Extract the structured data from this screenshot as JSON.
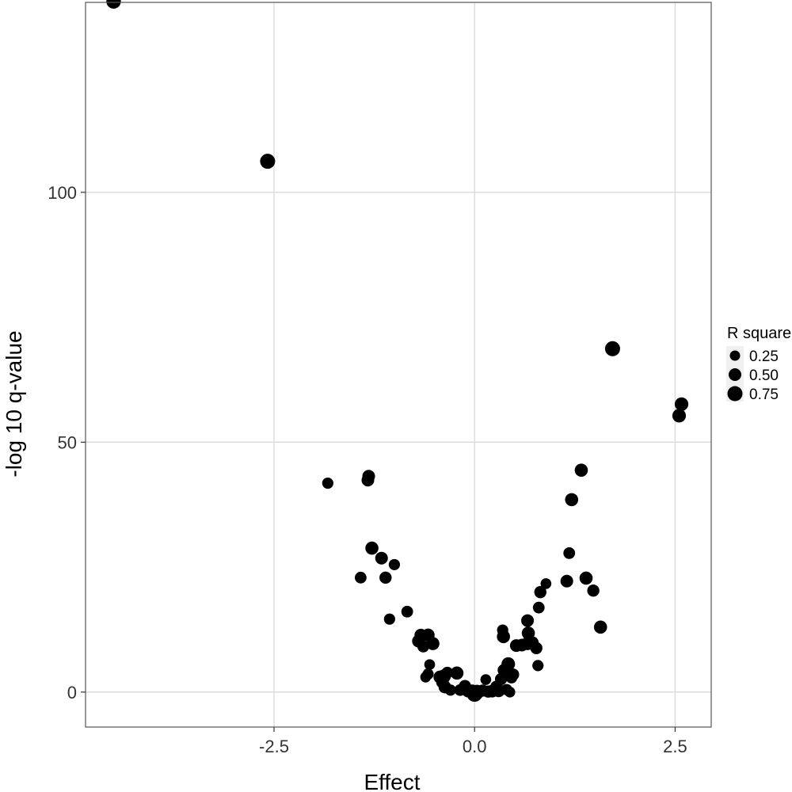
{
  "chart_data": {
    "type": "scatter",
    "title": "",
    "xlabel": "Effect",
    "ylabel": "-log 10 q-value",
    "xlim": [
      -4.85,
      2.95
    ],
    "ylim": [
      -7,
      138
    ],
    "x_ticks": [
      -2.5,
      0.0,
      2.5
    ],
    "x_tick_labels": [
      "-2.5",
      "0.0",
      "2.5"
    ],
    "y_ticks": [
      0,
      50,
      100
    ],
    "y_tick_labels": [
      "0",
      "50",
      "100"
    ],
    "grid": true,
    "legend": {
      "title": "R square",
      "placement": "right",
      "entries": [
        {
          "label": "0.25",
          "value": 0.25
        },
        {
          "label": "0.50",
          "value": 0.5
        },
        {
          "label": "0.75",
          "value": 0.75
        }
      ]
    },
    "colors": {
      "points": "#000000",
      "grid": "#d9d9d9",
      "frame": "#555555"
    },
    "points": [
      {
        "x": -4.5,
        "y": 138.2,
        "r2": 0.7
      },
      {
        "x": -2.58,
        "y": 106.2,
        "r2": 0.75
      },
      {
        "x": 1.72,
        "y": 68.7,
        "r2": 0.75
      },
      {
        "x": 2.58,
        "y": 57.6,
        "r2": 0.6
      },
      {
        "x": 2.55,
        "y": 55.3,
        "r2": 0.6
      },
      {
        "x": -1.83,
        "y": 41.8,
        "r2": 0.35
      },
      {
        "x": -1.32,
        "y": 43.2,
        "r2": 0.5
      },
      {
        "x": -1.33,
        "y": 42.4,
        "r2": 0.5
      },
      {
        "x": 1.33,
        "y": 44.4,
        "r2": 0.55
      },
      {
        "x": 1.21,
        "y": 38.5,
        "r2": 0.55
      },
      {
        "x": -1.28,
        "y": 28.8,
        "r2": 0.55
      },
      {
        "x": -1.16,
        "y": 26.8,
        "r2": 0.5
      },
      {
        "x": -1.0,
        "y": 25.5,
        "r2": 0.35
      },
      {
        "x": -1.42,
        "y": 22.9,
        "r2": 0.4
      },
      {
        "x": -1.11,
        "y": 22.9,
        "r2": 0.45
      },
      {
        "x": 1.18,
        "y": 27.8,
        "r2": 0.4
      },
      {
        "x": 1.15,
        "y": 22.2,
        "r2": 0.5
      },
      {
        "x": 1.39,
        "y": 22.8,
        "r2": 0.55
      },
      {
        "x": 1.48,
        "y": 20.3,
        "r2": 0.45
      },
      {
        "x": 0.82,
        "y": 20.0,
        "r2": 0.45
      },
      {
        "x": 0.89,
        "y": 21.7,
        "r2": 0.3
      },
      {
        "x": 0.8,
        "y": 16.9,
        "r2": 0.4
      },
      {
        "x": 1.57,
        "y": 13.0,
        "r2": 0.55
      },
      {
        "x": -0.84,
        "y": 16.1,
        "r2": 0.4
      },
      {
        "x": -1.06,
        "y": 14.6,
        "r2": 0.35
      },
      {
        "x": -0.67,
        "y": 11.4,
        "r2": 0.5
      },
      {
        "x": -0.58,
        "y": 11.4,
        "r2": 0.55
      },
      {
        "x": -0.7,
        "y": 10.2,
        "r2": 0.5
      },
      {
        "x": -0.64,
        "y": 9.1,
        "r2": 0.4
      },
      {
        "x": -0.52,
        "y": 9.7,
        "r2": 0.55
      },
      {
        "x": -0.56,
        "y": 5.5,
        "r2": 0.3
      },
      {
        "x": -0.58,
        "y": 3.6,
        "r2": 0.35
      },
      {
        "x": -0.61,
        "y": 3.0,
        "r2": 0.3
      },
      {
        "x": -0.43,
        "y": 3.0,
        "r2": 0.55
      },
      {
        "x": -0.38,
        "y": 3.2,
        "r2": 0.6
      },
      {
        "x": -0.4,
        "y": 2.0,
        "r2": 0.5
      },
      {
        "x": -0.37,
        "y": 1.0,
        "r2": 0.5
      },
      {
        "x": -0.34,
        "y": 3.9,
        "r2": 0.4
      },
      {
        "x": -0.3,
        "y": 0.4,
        "r2": 0.35
      },
      {
        "x": -0.22,
        "y": 3.8,
        "r2": 0.55
      },
      {
        "x": -0.18,
        "y": 0.4,
        "r2": 0.4
      },
      {
        "x": -0.12,
        "y": 1.2,
        "r2": 0.45
      },
      {
        "x": -0.08,
        "y": 0.2,
        "r2": 0.5
      },
      {
        "x": -0.03,
        "y": 0.1,
        "r2": 0.65
      },
      {
        "x": 0.0,
        "y": -0.4,
        "r2": 0.8
      },
      {
        "x": 0.03,
        "y": 0.0,
        "r2": 0.7
      },
      {
        "x": 0.1,
        "y": 0.3,
        "r2": 0.45
      },
      {
        "x": 0.14,
        "y": 2.5,
        "r2": 0.3
      },
      {
        "x": 0.17,
        "y": 0.1,
        "r2": 0.45
      },
      {
        "x": 0.22,
        "y": 0.2,
        "r2": 0.5
      },
      {
        "x": 0.27,
        "y": 1.1,
        "r2": 0.4
      },
      {
        "x": 0.3,
        "y": 0.3,
        "r2": 0.55
      },
      {
        "x": 0.33,
        "y": 2.6,
        "r2": 0.45
      },
      {
        "x": 0.36,
        "y": 4.4,
        "r2": 0.4
      },
      {
        "x": 0.4,
        "y": 0.5,
        "r2": 0.35
      },
      {
        "x": 0.44,
        "y": 0.0,
        "r2": 0.3
      },
      {
        "x": 0.35,
        "y": 12.4,
        "r2": 0.35
      },
      {
        "x": 0.36,
        "y": 11.1,
        "r2": 0.55
      },
      {
        "x": 0.42,
        "y": 5.6,
        "r2": 0.6
      },
      {
        "x": 0.48,
        "y": 3.5,
        "r2": 0.45
      },
      {
        "x": 0.46,
        "y": 2.9,
        "r2": 0.4
      },
      {
        "x": 0.52,
        "y": 9.3,
        "r2": 0.5
      },
      {
        "x": 0.59,
        "y": 9.4,
        "r2": 0.5
      },
      {
        "x": 0.66,
        "y": 9.7,
        "r2": 0.55
      },
      {
        "x": 0.72,
        "y": 9.9,
        "r2": 0.5
      },
      {
        "x": 0.77,
        "y": 8.8,
        "r2": 0.45
      },
      {
        "x": 0.67,
        "y": 11.8,
        "r2": 0.55
      },
      {
        "x": 0.66,
        "y": 14.3,
        "r2": 0.5
      },
      {
        "x": 0.79,
        "y": 5.3,
        "r2": 0.35
      }
    ]
  }
}
